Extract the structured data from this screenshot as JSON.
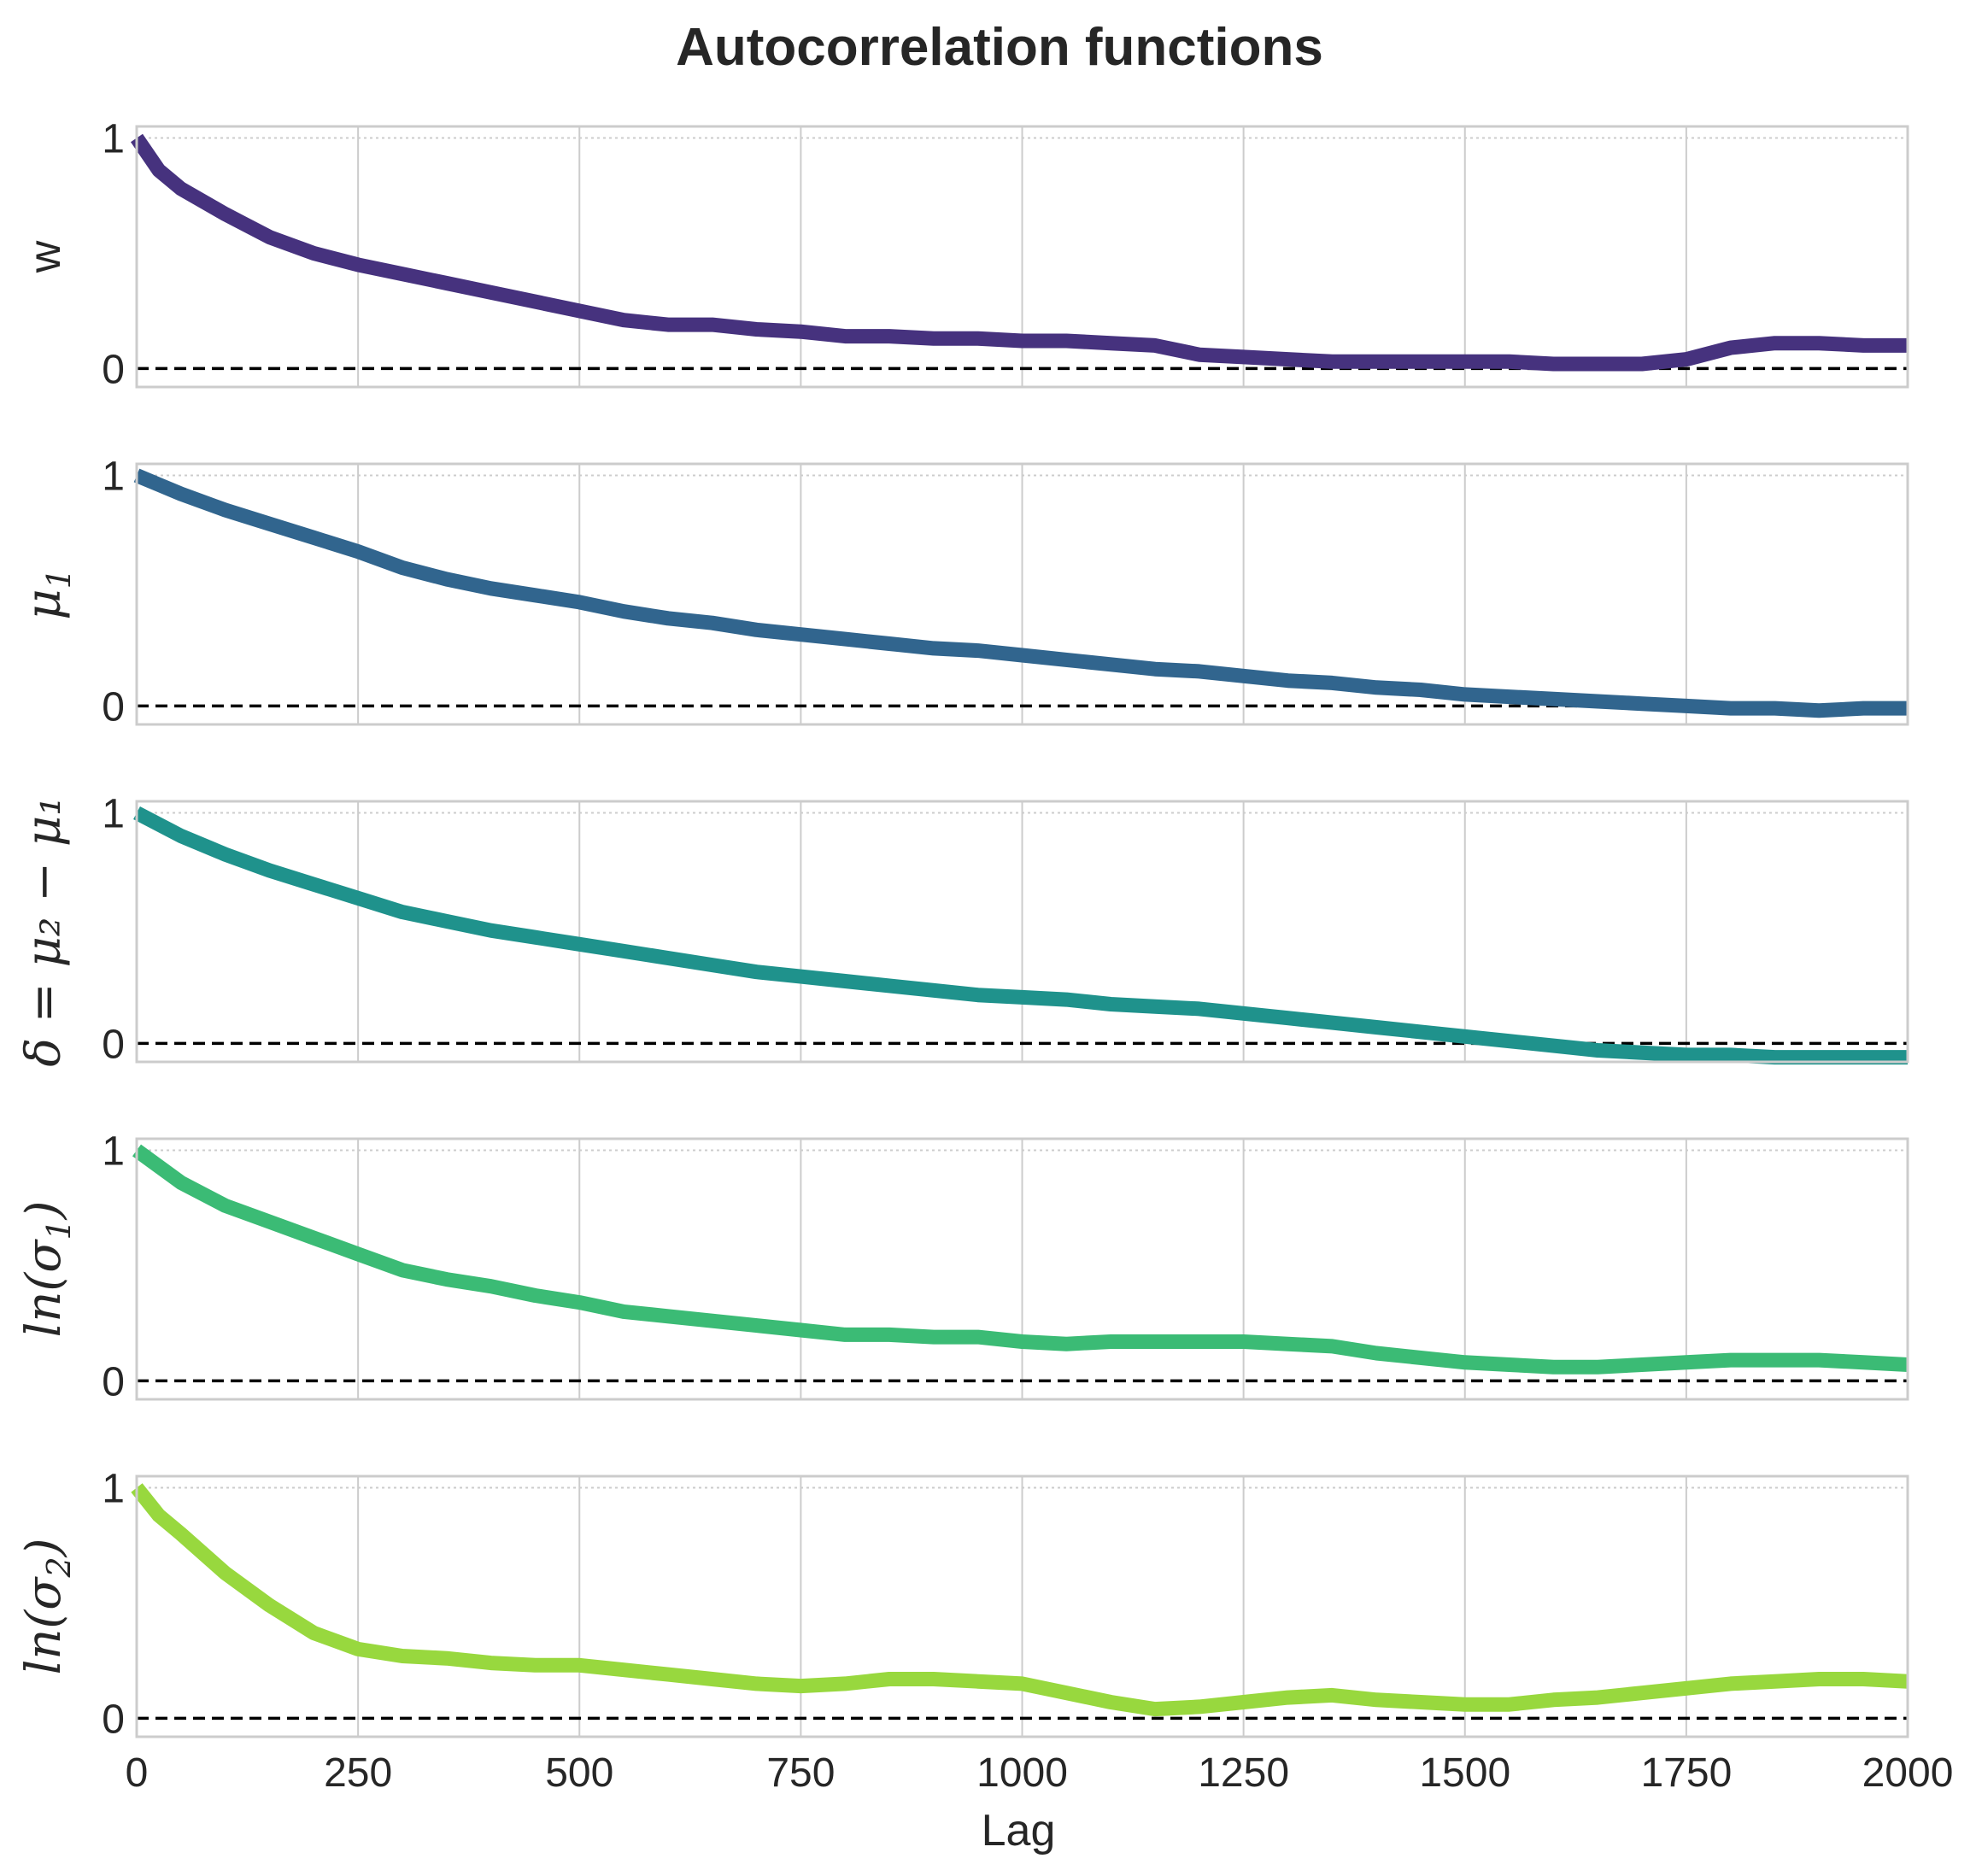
{
  "chart_data": {
    "type": "line",
    "title": "Autocorrelation functions",
    "xlabel": "Lag",
    "xlim": [
      0,
      2000
    ],
    "xticks": [
      0,
      250,
      500,
      750,
      1000,
      1250,
      1500,
      1750,
      2000
    ],
    "xtick_labels": [
      "0",
      "250",
      "500",
      "750",
      "1000",
      "1250",
      "1500",
      "1750",
      "2000"
    ],
    "ytick_labels": [
      "0",
      "1"
    ],
    "reference_line": {
      "y": 0,
      "style": "dashed",
      "color": "#000000"
    },
    "grid": true,
    "x": [
      0,
      25,
      50,
      100,
      150,
      200,
      250,
      300,
      350,
      400,
      450,
      500,
      550,
      600,
      650,
      700,
      750,
      800,
      850,
      900,
      950,
      1000,
      1050,
      1100,
      1150,
      1200,
      1250,
      1300,
      1350,
      1400,
      1450,
      1500,
      1550,
      1600,
      1650,
      1700,
      1750,
      1800,
      1850,
      1900,
      1950,
      2000
    ],
    "panels": [
      {
        "ylabel": "w",
        "ylabel_kind": "plain",
        "color": "#46327e",
        "ylim": [
          -0.08,
          1.05
        ],
        "values": [
          1.0,
          0.86,
          0.78,
          0.67,
          0.57,
          0.5,
          0.45,
          0.41,
          0.37,
          0.33,
          0.29,
          0.25,
          0.21,
          0.19,
          0.19,
          0.17,
          0.16,
          0.14,
          0.14,
          0.13,
          0.13,
          0.12,
          0.12,
          0.11,
          0.1,
          0.06,
          0.05,
          0.04,
          0.03,
          0.03,
          0.03,
          0.03,
          0.03,
          0.02,
          0.02,
          0.02,
          0.04,
          0.09,
          0.11,
          0.11,
          0.1,
          0.1
        ]
      },
      {
        "ylabel": "μ",
        "ylabel_sub": "1",
        "ylabel_kind": "math",
        "color": "#31658e",
        "ylim": [
          -0.08,
          1.05
        ],
        "values": [
          1.0,
          0.96,
          0.92,
          0.85,
          0.79,
          0.73,
          0.67,
          0.6,
          0.55,
          0.51,
          0.48,
          0.45,
          0.41,
          0.38,
          0.36,
          0.33,
          0.31,
          0.29,
          0.27,
          0.25,
          0.24,
          0.22,
          0.2,
          0.18,
          0.16,
          0.15,
          0.13,
          0.11,
          0.1,
          0.08,
          0.07,
          0.05,
          0.04,
          0.03,
          0.02,
          0.01,
          0.0,
          -0.01,
          -0.01,
          -0.02,
          -0.01,
          -0.01
        ]
      },
      {
        "ylabel": "δ = μ₂ − μ₁",
        "ylabel_kind": "math",
        "color": "#1f928c",
        "ylim": [
          -0.08,
          1.05
        ],
        "values": [
          1.0,
          0.95,
          0.9,
          0.82,
          0.75,
          0.69,
          0.63,
          0.57,
          0.53,
          0.49,
          0.46,
          0.43,
          0.4,
          0.37,
          0.34,
          0.31,
          0.29,
          0.27,
          0.25,
          0.23,
          0.21,
          0.2,
          0.19,
          0.17,
          0.16,
          0.15,
          0.13,
          0.11,
          0.09,
          0.07,
          0.05,
          0.03,
          0.01,
          -0.01,
          -0.03,
          -0.04,
          -0.05,
          -0.05,
          -0.06,
          -0.06,
          -0.06,
          -0.06
        ]
      },
      {
        "ylabel": "ln(σ",
        "ylabel_sub": "1",
        "ylabel_end": ")",
        "ylabel_kind": "math",
        "color": "#3bbb75",
        "ylim": [
          -0.08,
          1.05
        ],
        "values": [
          1.0,
          0.93,
          0.86,
          0.76,
          0.69,
          0.62,
          0.55,
          0.48,
          0.44,
          0.41,
          0.37,
          0.34,
          0.3,
          0.28,
          0.26,
          0.24,
          0.22,
          0.2,
          0.2,
          0.19,
          0.19,
          0.17,
          0.16,
          0.17,
          0.17,
          0.17,
          0.17,
          0.16,
          0.15,
          0.12,
          0.1,
          0.08,
          0.07,
          0.06,
          0.06,
          0.07,
          0.08,
          0.09,
          0.09,
          0.09,
          0.08,
          0.07
        ]
      },
      {
        "ylabel": "ln(σ",
        "ylabel_sub": "2",
        "ylabel_end": ")",
        "ylabel_kind": "math",
        "color": "#98d83e",
        "ylim": [
          -0.08,
          1.05
        ],
        "values": [
          1.0,
          0.88,
          0.8,
          0.63,
          0.49,
          0.37,
          0.3,
          0.27,
          0.26,
          0.24,
          0.23,
          0.23,
          0.21,
          0.19,
          0.17,
          0.15,
          0.14,
          0.15,
          0.17,
          0.17,
          0.16,
          0.15,
          0.11,
          0.07,
          0.04,
          0.05,
          0.07,
          0.09,
          0.1,
          0.08,
          0.07,
          0.06,
          0.06,
          0.08,
          0.09,
          0.11,
          0.13,
          0.15,
          0.16,
          0.17,
          0.17,
          0.16
        ]
      }
    ]
  }
}
